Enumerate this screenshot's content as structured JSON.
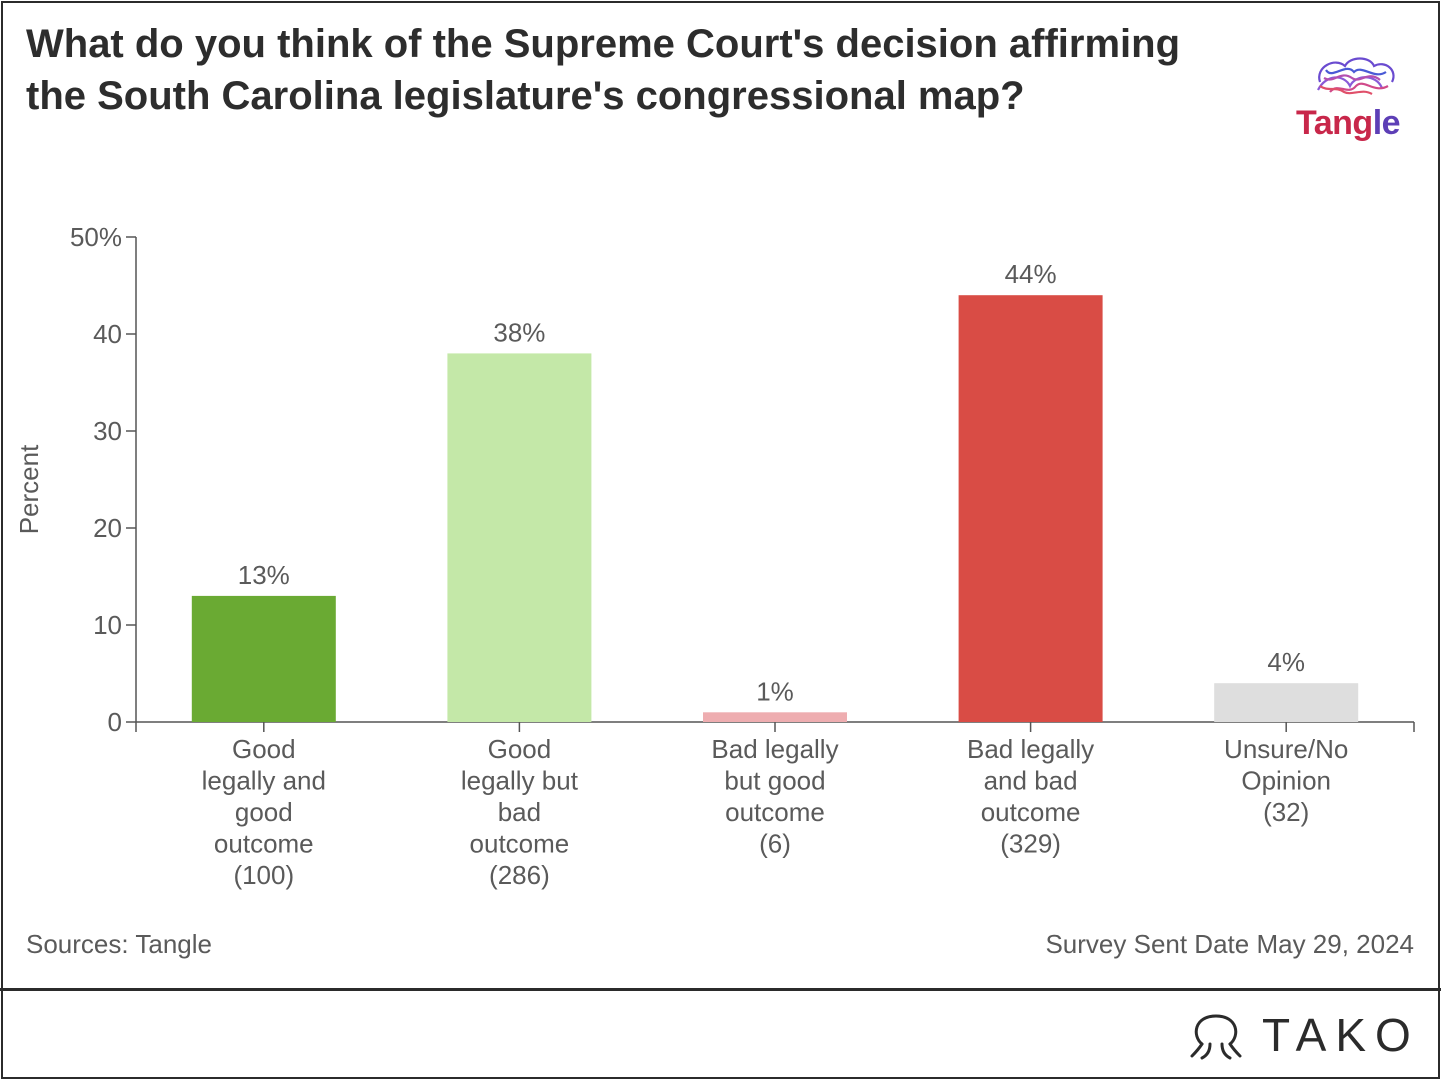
{
  "title": "What do you think of the Supreme Court's decision affirming the South Carolina legislature's congressional map?",
  "logo": {
    "text_a": "Tang",
    "text_b": "le"
  },
  "footer": {
    "sources": "Sources: Tangle",
    "survey_date": "Survey Sent Date May 29, 2024",
    "brand": "TAKO"
  },
  "colors": {
    "good_good": "#6aaa33",
    "good_bad": "#c4e8a8",
    "bad_good": "#eeadb0",
    "bad_bad": "#d94c45",
    "unsure": "#dedede"
  },
  "chart_data": {
    "type": "bar",
    "title": "What do you think of the Supreme Court's decision affirming the South Carolina legislature's congressional map?",
    "ylabel": "Percent",
    "xlabel": "",
    "ylim": [
      0,
      50
    ],
    "yticks": [
      0,
      10,
      20,
      30,
      40,
      50
    ],
    "ytick_labels": [
      "0",
      "10",
      "20",
      "30",
      "40",
      "50%"
    ],
    "categories": [
      [
        "Good",
        "legally and",
        "good",
        "outcome",
        "(100)"
      ],
      [
        "Good",
        "legally but",
        "bad",
        "outcome",
        "(286)"
      ],
      [
        "Bad legally",
        "but good",
        "outcome",
        "(6)"
      ],
      [
        "Bad legally",
        "and bad",
        "outcome",
        "(329)"
      ],
      [
        "Unsure/No",
        "Opinion",
        "(32)"
      ]
    ],
    "values": [
      13,
      38,
      1,
      44,
      4
    ],
    "value_labels": [
      "13%",
      "38%",
      "1%",
      "44%",
      "4%"
    ],
    "bar_colors": [
      "#6aaa33",
      "#c4e8a8",
      "#eeadb0",
      "#d94c45",
      "#dedede"
    ],
    "grid": false,
    "legend": "none"
  }
}
